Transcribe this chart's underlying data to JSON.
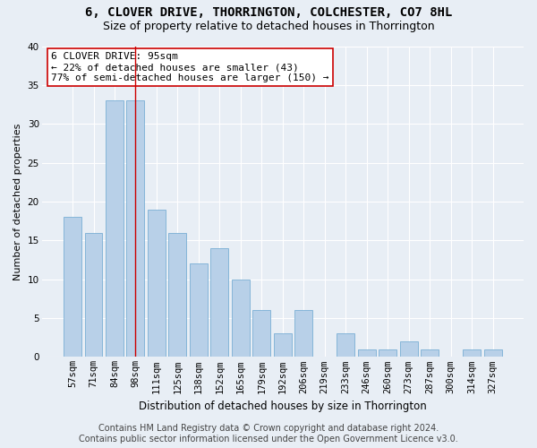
{
  "title": "6, CLOVER DRIVE, THORRINGTON, COLCHESTER, CO7 8HL",
  "subtitle": "Size of property relative to detached houses in Thorrington",
  "xlabel": "Distribution of detached houses by size in Thorrington",
  "ylabel": "Number of detached properties",
  "categories": [
    "57sqm",
    "71sqm",
    "84sqm",
    "98sqm",
    "111sqm",
    "125sqm",
    "138sqm",
    "152sqm",
    "165sqm",
    "179sqm",
    "192sqm",
    "206sqm",
    "219sqm",
    "233sqm",
    "246sqm",
    "260sqm",
    "273sqm",
    "287sqm",
    "300sqm",
    "314sqm",
    "327sqm"
  ],
  "values": [
    18,
    16,
    33,
    33,
    19,
    16,
    12,
    14,
    10,
    6,
    3,
    6,
    0,
    3,
    1,
    1,
    2,
    1,
    0,
    1,
    1
  ],
  "bar_color": "#b8d0e8",
  "bar_edge_color": "#7aafd4",
  "reference_line_x": 2.97,
  "reference_line_color": "#cc0000",
  "annotation_text": "6 CLOVER DRIVE: 95sqm\n← 22% of detached houses are smaller (43)\n77% of semi-detached houses are larger (150) →",
  "annotation_box_facecolor": "#ffffff",
  "annotation_box_edgecolor": "#cc0000",
  "ylim": [
    0,
    40
  ],
  "yticks": [
    0,
    5,
    10,
    15,
    20,
    25,
    30,
    35,
    40
  ],
  "background_color": "#e8eef5",
  "grid_color": "#ffffff",
  "title_fontsize": 10,
  "subtitle_fontsize": 9,
  "xlabel_fontsize": 8.5,
  "ylabel_fontsize": 8,
  "tick_fontsize": 7.5,
  "annotation_fontsize": 8,
  "footer_fontsize": 7,
  "footer_line1": "Contains HM Land Registry data © Crown copyright and database right 2024.",
  "footer_line2": "Contains public sector information licensed under the Open Government Licence v3.0."
}
